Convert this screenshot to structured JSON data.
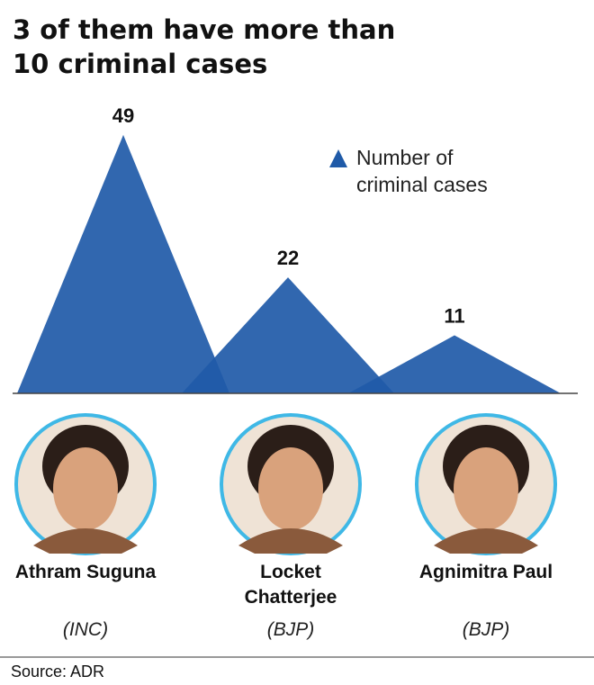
{
  "chart_data": {
    "type": "triangle",
    "title": "3 of them have more than 10 criminal cases",
    "categories": [
      "Athram Suguna",
      "Locket Chatterjee",
      "Agnimitra Paul"
    ],
    "parties": [
      "(INC)",
      "(BJP)",
      "(BJP)"
    ],
    "series": [
      {
        "name": "Number of criminal cases",
        "color": "#1f5aa8",
        "values": [
          49,
          22,
          11
        ]
      }
    ],
    "ylim": [
      0,
      50
    ],
    "legend": "upper right"
  },
  "source": "Source: ADR"
}
